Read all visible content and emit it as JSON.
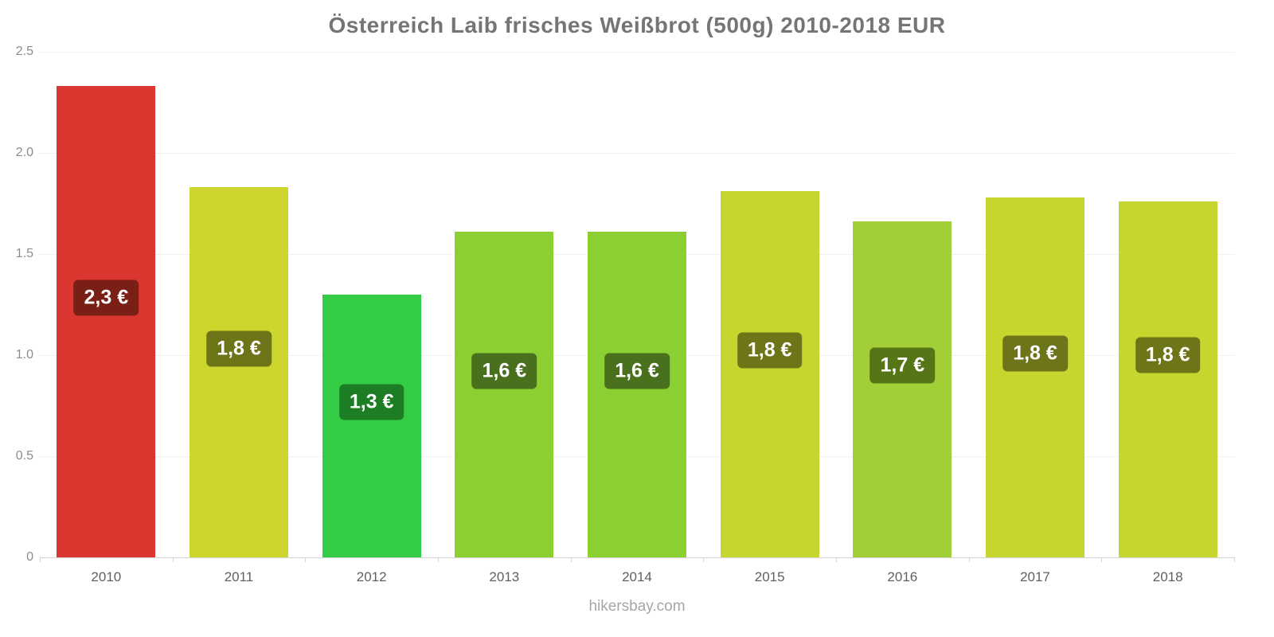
{
  "title": "Österreich Laib frisches Weißbrot (500g) 2010-2018 EUR",
  "footer": "hikersbay.com",
  "chart_data": {
    "type": "bar",
    "title": "Österreich Laib frisches Weißbrot (500g) 2010-2018 EUR",
    "xlabel": "",
    "ylabel": "",
    "currency": "EUR",
    "categories": [
      "2010",
      "2011",
      "2012",
      "2013",
      "2014",
      "2015",
      "2016",
      "2017",
      "2018"
    ],
    "values": [
      2.33,
      1.83,
      1.3,
      1.61,
      1.61,
      1.81,
      1.66,
      1.78,
      1.76
    ],
    "bar_labels": [
      "2,3 €",
      "1,8 €",
      "1,3 €",
      "1,6 €",
      "1,6 €",
      "1,8 €",
      "1,7 €",
      "1,8 €",
      "1,8 €"
    ],
    "bar_colors": [
      "#db3731",
      "#ccd62c",
      "#33cc44",
      "#8bcf32",
      "#8bcf32",
      "#c6d62f",
      "#a2cf37",
      "#c6d62f",
      "#c6d62f"
    ],
    "label_bg_colors": [
      "#7a1f15",
      "#6e7418",
      "#1d7d24",
      "#49701c",
      "#49701c",
      "#6e7418",
      "#567517",
      "#6e7418",
      "#6e7418"
    ],
    "ylim": [
      0,
      2.5
    ],
    "yticks": [
      0,
      0.5,
      1.0,
      1.5,
      2.0,
      2.5
    ],
    "ytick_labels": [
      "0",
      "0.5",
      "1.0",
      "1.5",
      "2.0",
      "2.5"
    ],
    "grid": "dotted horizontal gridlines",
    "legend": "none"
  }
}
